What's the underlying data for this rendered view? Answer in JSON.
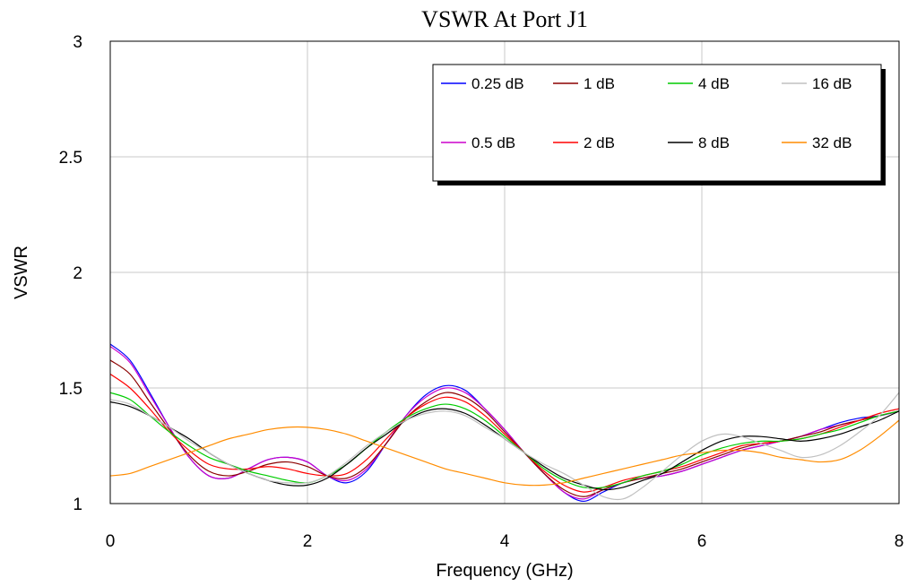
{
  "chart_data": {
    "type": "line",
    "title": "VSWR At Port J1",
    "xlabel": "Frequency (GHz)",
    "ylabel": "VSWR",
    "xlim": [
      0,
      8
    ],
    "ylim": [
      1,
      3
    ],
    "xticks": [
      0,
      2,
      4,
      6,
      8
    ],
    "xtick_labels": [
      "0",
      "2",
      "4",
      "6",
      "8"
    ],
    "yticks": [
      1,
      1.5,
      2,
      2.5,
      3
    ],
    "ytick_labels": [
      "1",
      "1.5",
      "2",
      "2.5",
      "3"
    ],
    "grid": true,
    "legend_position": "top-right",
    "series": [
      {
        "name": "0.25 dB",
        "color": "#0000ff",
        "x": [
          0,
          0.2,
          0.4,
          0.6,
          0.8,
          1.0,
          1.2,
          1.4,
          1.6,
          1.8,
          2.0,
          2.2,
          2.4,
          2.6,
          2.8,
          3.0,
          3.2,
          3.4,
          3.6,
          3.8,
          4.0,
          4.2,
          4.4,
          4.6,
          4.8,
          5.0,
          5.2,
          5.4,
          5.6,
          5.8,
          6.0,
          6.2,
          6.4,
          6.6,
          6.8,
          7.0,
          7.2,
          7.4,
          7.6,
          7.8,
          8.0
        ],
        "y": [
          1.69,
          1.62,
          1.48,
          1.33,
          1.2,
          1.12,
          1.11,
          1.15,
          1.19,
          1.2,
          1.18,
          1.12,
          1.09,
          1.14,
          1.26,
          1.38,
          1.47,
          1.51,
          1.49,
          1.41,
          1.32,
          1.22,
          1.13,
          1.05,
          1.01,
          1.05,
          1.09,
          1.11,
          1.12,
          1.14,
          1.17,
          1.2,
          1.23,
          1.25,
          1.27,
          1.29,
          1.32,
          1.35,
          1.37,
          1.38,
          1.4
        ]
      },
      {
        "name": "0.5 dB",
        "color": "#cc00cc",
        "x": [
          0,
          0.2,
          0.4,
          0.6,
          0.8,
          1.0,
          1.2,
          1.4,
          1.6,
          1.8,
          2.0,
          2.2,
          2.4,
          2.6,
          2.8,
          3.0,
          3.2,
          3.4,
          3.6,
          3.8,
          4.0,
          4.2,
          4.4,
          4.6,
          4.8,
          5.0,
          5.2,
          5.4,
          5.6,
          5.8,
          6.0,
          6.2,
          6.4,
          6.6,
          6.8,
          7.0,
          7.2,
          7.4,
          7.6,
          7.8,
          8.0
        ],
        "y": [
          1.68,
          1.61,
          1.47,
          1.33,
          1.2,
          1.12,
          1.11,
          1.15,
          1.19,
          1.2,
          1.18,
          1.12,
          1.1,
          1.15,
          1.26,
          1.38,
          1.46,
          1.5,
          1.48,
          1.41,
          1.32,
          1.22,
          1.13,
          1.05,
          1.02,
          1.06,
          1.09,
          1.11,
          1.12,
          1.14,
          1.17,
          1.2,
          1.23,
          1.25,
          1.27,
          1.29,
          1.32,
          1.34,
          1.36,
          1.38,
          1.4
        ]
      },
      {
        "name": "1 dB",
        "color": "#8b0000",
        "x": [
          0,
          0.2,
          0.4,
          0.6,
          0.8,
          1.0,
          1.2,
          1.4,
          1.6,
          1.8,
          2.0,
          2.2,
          2.4,
          2.6,
          2.8,
          3.0,
          3.2,
          3.4,
          3.6,
          3.8,
          4.0,
          4.2,
          4.4,
          4.6,
          4.8,
          5.0,
          5.2,
          5.4,
          5.6,
          5.8,
          6.0,
          6.2,
          6.4,
          6.6,
          6.8,
          7.0,
          7.2,
          7.4,
          7.6,
          7.8,
          8.0
        ],
        "y": [
          1.62,
          1.56,
          1.44,
          1.32,
          1.21,
          1.14,
          1.12,
          1.14,
          1.17,
          1.18,
          1.16,
          1.12,
          1.11,
          1.16,
          1.26,
          1.37,
          1.44,
          1.48,
          1.46,
          1.4,
          1.31,
          1.22,
          1.13,
          1.06,
          1.03,
          1.06,
          1.09,
          1.11,
          1.13,
          1.15,
          1.18,
          1.21,
          1.24,
          1.26,
          1.27,
          1.29,
          1.31,
          1.34,
          1.36,
          1.38,
          1.4
        ]
      },
      {
        "name": "2 dB",
        "color": "#ff0000",
        "x": [
          0,
          0.2,
          0.4,
          0.6,
          0.8,
          1.0,
          1.2,
          1.4,
          1.6,
          1.8,
          2.0,
          2.2,
          2.4,
          2.6,
          2.8,
          3.0,
          3.2,
          3.4,
          3.6,
          3.8,
          4.0,
          4.2,
          4.4,
          4.6,
          4.8,
          5.0,
          5.2,
          5.4,
          5.6,
          5.8,
          6.0,
          6.2,
          6.4,
          6.6,
          6.8,
          7.0,
          7.2,
          7.4,
          7.6,
          7.8,
          8.0
        ],
        "y": [
          1.56,
          1.5,
          1.41,
          1.31,
          1.23,
          1.17,
          1.15,
          1.15,
          1.16,
          1.15,
          1.13,
          1.12,
          1.13,
          1.19,
          1.28,
          1.37,
          1.43,
          1.46,
          1.44,
          1.38,
          1.3,
          1.22,
          1.14,
          1.08,
          1.05,
          1.07,
          1.1,
          1.12,
          1.14,
          1.16,
          1.19,
          1.22,
          1.25,
          1.26,
          1.27,
          1.28,
          1.3,
          1.33,
          1.36,
          1.39,
          1.41
        ]
      },
      {
        "name": "4 dB",
        "color": "#00cc00",
        "x": [
          0,
          0.2,
          0.4,
          0.6,
          0.8,
          1.0,
          1.2,
          1.4,
          1.6,
          1.8,
          2.0,
          2.2,
          2.4,
          2.6,
          2.8,
          3.0,
          3.2,
          3.4,
          3.6,
          3.8,
          4.0,
          4.2,
          4.4,
          4.6,
          4.8,
          5.0,
          5.2,
          5.4,
          5.6,
          5.8,
          6.0,
          6.2,
          6.4,
          6.6,
          6.8,
          7.0,
          7.2,
          7.4,
          7.6,
          7.8,
          8.0
        ],
        "y": [
          1.48,
          1.45,
          1.38,
          1.31,
          1.25,
          1.2,
          1.17,
          1.14,
          1.12,
          1.1,
          1.09,
          1.12,
          1.17,
          1.24,
          1.31,
          1.37,
          1.41,
          1.43,
          1.41,
          1.36,
          1.29,
          1.22,
          1.15,
          1.1,
          1.07,
          1.07,
          1.09,
          1.12,
          1.14,
          1.17,
          1.21,
          1.24,
          1.26,
          1.27,
          1.27,
          1.28,
          1.3,
          1.32,
          1.35,
          1.38,
          1.4
        ]
      },
      {
        "name": "8 dB",
        "color": "#000000",
        "x": [
          0,
          0.2,
          0.4,
          0.6,
          0.8,
          1.0,
          1.2,
          1.4,
          1.6,
          1.8,
          2.0,
          2.2,
          2.4,
          2.6,
          2.8,
          3.0,
          3.2,
          3.4,
          3.6,
          3.8,
          4.0,
          4.2,
          4.4,
          4.6,
          4.8,
          5.0,
          5.2,
          5.4,
          5.6,
          5.8,
          6.0,
          6.2,
          6.4,
          6.6,
          6.8,
          7.0,
          7.2,
          7.4,
          7.6,
          7.8,
          8.0
        ],
        "y": [
          1.44,
          1.42,
          1.38,
          1.33,
          1.28,
          1.22,
          1.17,
          1.13,
          1.1,
          1.08,
          1.08,
          1.11,
          1.17,
          1.24,
          1.3,
          1.36,
          1.4,
          1.41,
          1.39,
          1.34,
          1.28,
          1.22,
          1.16,
          1.11,
          1.08,
          1.06,
          1.07,
          1.1,
          1.13,
          1.18,
          1.23,
          1.27,
          1.29,
          1.29,
          1.28,
          1.27,
          1.28,
          1.3,
          1.33,
          1.36,
          1.4
        ]
      },
      {
        "name": "16 dB",
        "color": "#c0c0c0",
        "x": [
          0,
          0.2,
          0.4,
          0.6,
          0.8,
          1.0,
          1.2,
          1.4,
          1.6,
          1.8,
          2.0,
          2.2,
          2.4,
          2.6,
          2.8,
          3.0,
          3.2,
          3.4,
          3.6,
          3.8,
          4.0,
          4.2,
          4.4,
          4.6,
          4.8,
          5.0,
          5.2,
          5.4,
          5.6,
          5.8,
          6.0,
          6.2,
          6.4,
          6.6,
          6.8,
          7.0,
          7.2,
          7.4,
          7.6,
          7.8,
          8.0
        ],
        "y": [
          1.45,
          1.43,
          1.38,
          1.33,
          1.27,
          1.22,
          1.17,
          1.13,
          1.1,
          1.09,
          1.09,
          1.12,
          1.18,
          1.25,
          1.31,
          1.36,
          1.39,
          1.4,
          1.38,
          1.33,
          1.28,
          1.22,
          1.17,
          1.13,
          1.08,
          1.03,
          1.02,
          1.07,
          1.14,
          1.21,
          1.27,
          1.3,
          1.29,
          1.26,
          1.23,
          1.2,
          1.21,
          1.25,
          1.31,
          1.38,
          1.48
        ]
      },
      {
        "name": "32 dB",
        "color": "#ff8c00",
        "x": [
          0,
          0.2,
          0.4,
          0.6,
          0.8,
          1.0,
          1.2,
          1.4,
          1.6,
          1.8,
          2.0,
          2.2,
          2.4,
          2.6,
          2.8,
          3.0,
          3.2,
          3.4,
          3.6,
          3.8,
          4.0,
          4.2,
          4.4,
          4.6,
          4.8,
          5.0,
          5.2,
          5.4,
          5.6,
          5.8,
          6.0,
          6.2,
          6.4,
          6.6,
          6.8,
          7.0,
          7.2,
          7.4,
          7.6,
          7.8,
          8.0
        ],
        "y": [
          1.12,
          1.13,
          1.16,
          1.19,
          1.22,
          1.25,
          1.28,
          1.3,
          1.32,
          1.33,
          1.33,
          1.32,
          1.3,
          1.27,
          1.24,
          1.21,
          1.18,
          1.15,
          1.13,
          1.11,
          1.09,
          1.08,
          1.08,
          1.09,
          1.11,
          1.13,
          1.15,
          1.17,
          1.19,
          1.21,
          1.22,
          1.23,
          1.23,
          1.22,
          1.2,
          1.19,
          1.18,
          1.19,
          1.23,
          1.29,
          1.36
        ]
      }
    ]
  }
}
